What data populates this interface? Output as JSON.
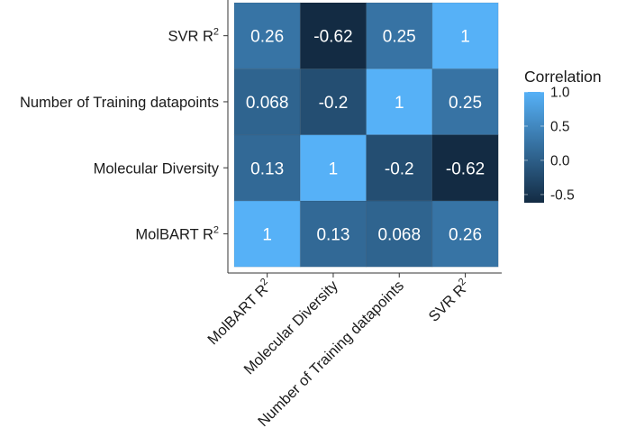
{
  "chart_data": {
    "type": "heatmap",
    "title": "",
    "xlabel": "",
    "ylabel": "",
    "x_categories": [
      "MolBART R²",
      "Molecular Diversity",
      "Number of Training datapoints",
      "SVR R²"
    ],
    "y_categories": [
      "MolBART R²",
      "Molecular Diversity",
      "Number of Training datapoints",
      "SVR R²"
    ],
    "values": [
      [
        1,
        0.13,
        0.068,
        0.26
      ],
      [
        0.13,
        1,
        -0.2,
        -0.62
      ],
      [
        0.068,
        -0.2,
        1,
        0.25
      ],
      [
        0.26,
        -0.62,
        0.25,
        1
      ]
    ],
    "labels": [
      [
        "1",
        "0.13",
        "0.068",
        "0.26"
      ],
      [
        "0.13",
        "1",
        "-0.2",
        "-0.62"
      ],
      [
        "0.068",
        "-0.2",
        "1",
        "0.25"
      ],
      [
        "0.26",
        "-0.62",
        "0.25",
        "1"
      ]
    ],
    "legend": {
      "title": "Correlation",
      "ticks": [
        "1.0",
        "0.5",
        "0.0",
        "-0.5"
      ],
      "tick_values": [
        1.0,
        0.5,
        0.0,
        -0.5
      ],
      "range": [
        -0.62,
        1
      ],
      "placement": "right",
      "low_color": "#132B43",
      "high_color": "#56B1F7"
    },
    "grid": false
  }
}
